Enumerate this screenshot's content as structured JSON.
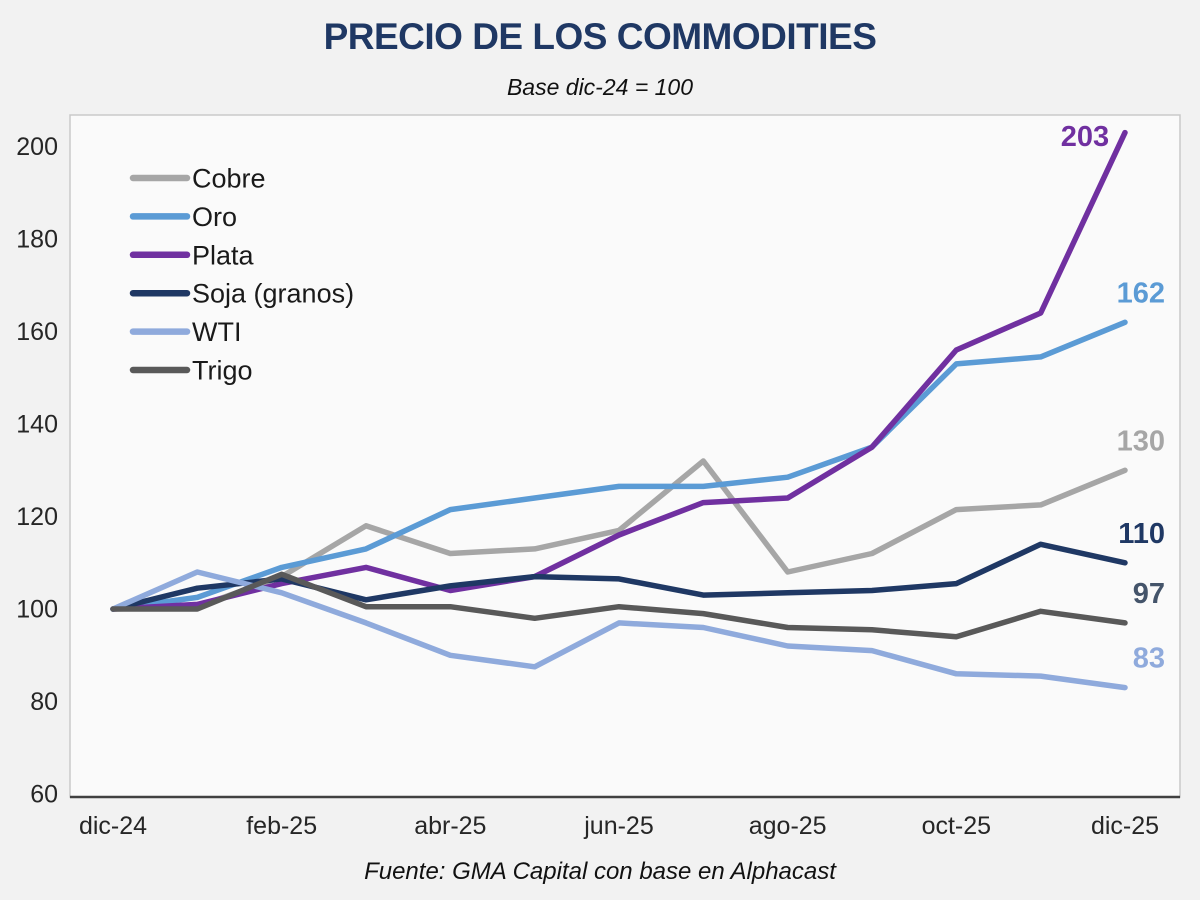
{
  "header": {
    "title": "PRECIO DE LOS COMMODITIES",
    "subtitle": "Base dic-24 = 100"
  },
  "footer": {
    "source": "Fuente: GMA Capital con base en Alphacast"
  },
  "colors": {
    "title": "#1f3864",
    "axis_text": "#262626",
    "plot_background": "#fafafa",
    "page_background": "#f2f2f2",
    "plot_border": "#c9c9c9",
    "x_axis_line": "#404040"
  },
  "chart_data": {
    "type": "line",
    "title": "PRECIO DE LOS COMMODITIES",
    "subtitle": "Base dic-24 = 100",
    "source": "Fuente: GMA Capital con base en Alphacast",
    "grid": false,
    "legend_position": "top-left-inside",
    "x": [
      "dic-24",
      "ene-25",
      "feb-25",
      "mar-25",
      "abr-25",
      "may-25",
      "jun-25",
      "jul-25",
      "ago-25",
      "sep-25",
      "oct-25",
      "nov-25",
      "dic-25"
    ],
    "x_axis_tick_labels": [
      "dic-24",
      "feb-25",
      "abr-25",
      "jun-25",
      "ago-25",
      "oct-25",
      "dic-25"
    ],
    "y_axis": {
      "min": 60,
      "max": 200,
      "step": 20,
      "ticks": [
        60,
        80,
        100,
        120,
        140,
        160,
        180,
        200
      ]
    },
    "series": [
      {
        "name": "Cobre",
        "color": "#a6a6a6",
        "end_label": "130",
        "end_label_color": "#a6a6a6",
        "values": [
          100,
          100.5,
          107,
          118,
          112,
          113,
          117,
          132,
          108,
          112,
          121.5,
          122.5,
          130
        ]
      },
      {
        "name": "Oro",
        "color": "#5b9bd5",
        "end_label": "162",
        "end_label_color": "#5b9bd5",
        "values": [
          100,
          102.5,
          109,
          113,
          121.5,
          124,
          126.5,
          126.5,
          128.5,
          135,
          153,
          154.5,
          162
        ]
      },
      {
        "name": "Plata",
        "color": "#7030a0",
        "end_label": "203",
        "end_label_color": "#7030a0",
        "values": [
          100,
          101,
          105.5,
          109,
          104,
          107,
          116,
          123,
          124,
          135,
          156,
          164,
          203
        ]
      },
      {
        "name": "Soja (granos)",
        "color": "#1f3864",
        "end_label": "110",
        "end_label_color": "#1f3864",
        "values": [
          100,
          104.5,
          106.5,
          102,
          105,
          107,
          106.5,
          103,
          103.5,
          104,
          105.5,
          114,
          110
        ]
      },
      {
        "name": "WTI",
        "color": "#8faadc",
        "end_label": "83",
        "end_label_color": "#8faadc",
        "values": [
          100,
          108,
          103.5,
          97,
          90,
          87.5,
          97,
          96,
          92,
          91,
          86,
          85.5,
          83
        ]
      },
      {
        "name": "Trigo",
        "color": "#595959",
        "end_label": "97",
        "end_label_color": "#44546a",
        "values": [
          100,
          100,
          107.5,
          100.5,
          100.5,
          98,
          100.5,
          99,
          96,
          95.5,
          94,
          99.5,
          97
        ]
      }
    ]
  }
}
